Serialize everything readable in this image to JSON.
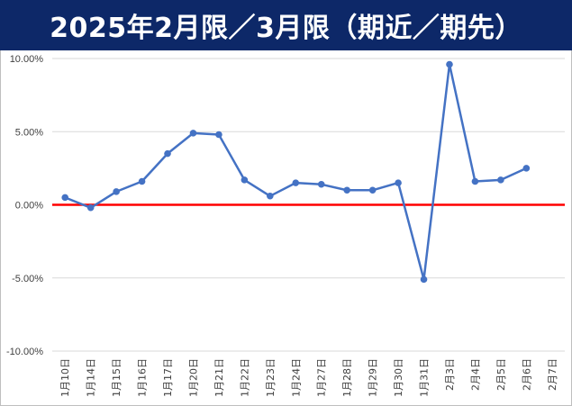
{
  "title": "2025年2月限／3月限（期近／期先）",
  "colors": {
    "title_bg": "#0d2868",
    "title_text": "#ffffff",
    "series": "#4472c4",
    "zero_line": "#ff0000",
    "grid": "#d9d9d9"
  },
  "chart_data": {
    "type": "line",
    "title": "2025年2月限／3月限（期近／期先）",
    "xlabel": "",
    "ylabel": "",
    "ylim": [
      -0.1,
      0.1
    ],
    "y_ticks": [
      0.1,
      0.05,
      0.0,
      -0.05,
      -0.1
    ],
    "y_tick_labels": [
      "10.00%",
      "5.00%",
      "0.00%",
      "-5.00%",
      "-10.00%"
    ],
    "grid": "horizontal",
    "legend": "none",
    "categories": [
      "1月10日",
      "1月14日",
      "1月15日",
      "1月16日",
      "1月17日",
      "1月20日",
      "1月21日",
      "1月22日",
      "1月23日",
      "1月24日",
      "1月27日",
      "1月28日",
      "1月29日",
      "1月30日",
      "1月31日",
      "2月3日",
      "2月4日",
      "2月5日",
      "2月6日",
      "2月7日"
    ],
    "values": [
      0.005,
      -0.002,
      0.009,
      0.016,
      0.035,
      0.049,
      0.048,
      0.017,
      0.006,
      0.015,
      0.014,
      0.01,
      0.01,
      0.015,
      -0.051,
      0.096,
      0.016,
      0.017,
      0.025,
      null
    ]
  }
}
